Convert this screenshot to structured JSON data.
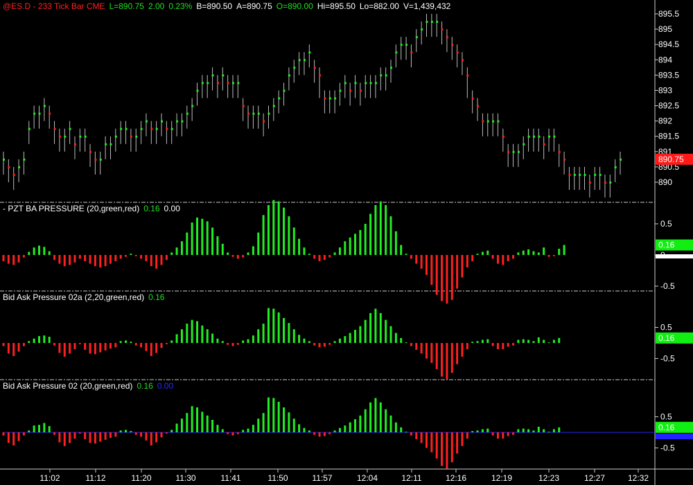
{
  "colors": {
    "up": "#22ee22",
    "down": "#ff2020",
    "accent": "#ff1a1a",
    "grid": "#cfcfcf",
    "text": "#ffffff",
    "blue": "#2222ff",
    "badge_green": "#11ee11"
  },
  "header": {
    "symbol": "@ES.D - 233 Tick Bar  CME",
    "last": "L=890.75",
    "change": "2.00",
    "change_pct": "0.23%",
    "bid": "B=890.50",
    "ask": "A=890.75",
    "open": "O=890.00",
    "high": "Hi=895.50",
    "low": "Lo=882.00",
    "volume": "V=1,439,432"
  },
  "panels": {
    "pressure": {
      "title": "- PZT BA PRESSURE (20,green,red)",
      "value": "0.16",
      "value2": "0.00",
      "badge": "0.16"
    },
    "pressure02a": {
      "title": "Bid Ask Pressure 02a (2,20,green,red)",
      "value": "0.16",
      "badge": "0.16"
    },
    "pressure02": {
      "title": "Bid Ask Pressure 02 (20,green,red)",
      "value": "0.16",
      "value2": "0.00",
      "badge": "0.16"
    }
  },
  "last_price_badge": "890.75",
  "chart_data": [
    {
      "type": "bar",
      "subtype": "ohlc",
      "title": "@ES.D - 233 Tick Bar  CME",
      "y_ticks": [
        "895.5",
        "895",
        "894.5",
        "894",
        "893.5",
        "893",
        "892.5",
        "892",
        "891.5",
        "891",
        "890.5",
        "890"
      ],
      "ylim": [
        889.4,
        895.8
      ],
      "x_ticks": [
        "11:02",
        "11:12",
        "11:20",
        "11:30",
        "11:41",
        "11:50",
        "11:57",
        "12:04",
        "12:11",
        "12:16",
        "12:19",
        "12:23",
        "12:27",
        "12:32"
      ],
      "close": [
        890.75,
        890.5,
        890.25,
        890.5,
        890.75,
        891.75,
        892.25,
        892.25,
        892.5,
        892.25,
        891.75,
        891.5,
        891.5,
        891.75,
        891.25,
        891.5,
        891.5,
        891,
        890.75,
        890.75,
        891.25,
        891.25,
        891.5,
        891.75,
        891.75,
        891.5,
        891.5,
        891.75,
        892,
        891.75,
        891.75,
        892,
        891.75,
        891.75,
        892,
        892,
        892.25,
        892.5,
        893,
        893.25,
        893.25,
        893.5,
        893.25,
        893.5,
        893.25,
        893.25,
        893.25,
        892.5,
        892.25,
        892.25,
        892.25,
        892,
        892.25,
        892.5,
        892.75,
        893,
        893.5,
        893.75,
        894,
        894,
        894.25,
        893.75,
        893.5,
        892.75,
        892.75,
        892.75,
        893,
        893.25,
        893,
        893.25,
        893,
        893.25,
        893.25,
        893.25,
        893.5,
        893.5,
        893.75,
        894.25,
        894.5,
        894.5,
        894.25,
        894.75,
        895,
        895.25,
        895.25,
        895.25,
        895,
        894.75,
        894.5,
        894.25,
        894,
        893.5,
        892.75,
        892.5,
        892,
        892,
        892,
        892,
        891.5,
        891,
        891,
        891,
        891.25,
        891.5,
        891.5,
        891.5,
        891.25,
        891.5,
        891.5,
        891,
        890.75,
        890.25,
        890.25,
        890.25,
        890.25,
        890,
        890.25,
        890.25,
        890,
        890,
        890.5,
        890.75
      ],
      "high": [
        891,
        890.75,
        890.5,
        890.75,
        891,
        892,
        892.5,
        892.5,
        892.75,
        892.5,
        892,
        891.75,
        891.75,
        892,
        891.5,
        891.75,
        891.75,
        891.25,
        891,
        891,
        891.5,
        891.5,
        891.75,
        892,
        892,
        891.75,
        891.75,
        892,
        892.25,
        892,
        892,
        892.25,
        892,
        892,
        892.25,
        892.25,
        892.5,
        892.75,
        893.25,
        893.5,
        893.5,
        893.75,
        893.5,
        893.75,
        893.5,
        893.5,
        893.5,
        892.75,
        892.5,
        892.5,
        892.5,
        892.25,
        892.5,
        892.75,
        893,
        893.25,
        893.75,
        894,
        894.25,
        894.25,
        894.5,
        894,
        893.75,
        893,
        893,
        893,
        893.25,
        893.5,
        893.25,
        893.5,
        893.25,
        893.5,
        893.5,
        893.5,
        893.75,
        893.75,
        894,
        894.5,
        894.75,
        894.75,
        894.5,
        895,
        895.25,
        895.5,
        895.5,
        895.5,
        895.25,
        895,
        894.75,
        894.5,
        894.25,
        893.75,
        893,
        892.75,
        892.25,
        892.25,
        892.25,
        892.25,
        891.75,
        891.25,
        891.25,
        891.25,
        891.5,
        891.75,
        891.75,
        891.75,
        891.5,
        891.75,
        891.75,
        891.25,
        891,
        890.5,
        890.5,
        890.5,
        890.5,
        890.25,
        890.5,
        890.5,
        890.25,
        890.25,
        890.75,
        891
      ],
      "low": [
        890.25,
        890,
        889.75,
        890,
        890.25,
        891.25,
        891.75,
        891.75,
        892,
        891.75,
        891.25,
        891,
        891,
        891.25,
        890.75,
        891,
        891,
        890.5,
        890.25,
        890.25,
        890.75,
        890.75,
        891,
        891.25,
        891.25,
        891,
        891,
        891.25,
        891.5,
        891.25,
        891.25,
        891.5,
        891.25,
        891.25,
        891.5,
        891.5,
        891.75,
        892,
        892.5,
        892.75,
        892.75,
        893,
        892.75,
        893,
        892.75,
        892.75,
        892.75,
        892,
        891.75,
        891.75,
        891.75,
        891.5,
        891.75,
        892,
        892.25,
        892.5,
        893,
        893.25,
        893.5,
        893.5,
        893.75,
        893.25,
        892.75,
        892.25,
        892.25,
        892.25,
        892.5,
        892.75,
        892.5,
        892.75,
        892.5,
        892.75,
        892.75,
        892.75,
        893,
        893,
        893.25,
        893.75,
        894,
        894,
        893.75,
        894.25,
        894.5,
        894.75,
        894.75,
        894.75,
        894.5,
        894.25,
        894,
        893.75,
        893.5,
        892.75,
        892.25,
        892,
        891.5,
        891.5,
        891.5,
        891.5,
        891,
        890.5,
        890.5,
        890.5,
        890.75,
        891,
        891,
        891,
        890.75,
        891,
        891,
        890.5,
        890.25,
        889.75,
        889.75,
        889.75,
        889.75,
        889.5,
        889.75,
        889.75,
        889.5,
        889.5,
        890,
        890.25
      ],
      "last_price": 890.75
    },
    {
      "type": "bar",
      "title": "- PZT BA PRESSURE (20,green,red)",
      "y_ticks": [
        "0.5",
        "0",
        "-0.5"
      ],
      "ylim": [
        -1.0,
        1.0
      ],
      "values": [
        -0.1,
        -0.14,
        -0.16,
        -0.12,
        -0.04,
        0.05,
        0.12,
        0.15,
        0.13,
        0.06,
        -0.08,
        -0.14,
        -0.18,
        -0.16,
        -0.12,
        -0.06,
        -0.1,
        -0.14,
        -0.18,
        -0.2,
        -0.18,
        -0.14,
        -0.1,
        -0.06,
        -0.03,
        0.02,
        -0.02,
        -0.06,
        -0.1,
        -0.18,
        -0.22,
        -0.16,
        -0.08,
        0.04,
        0.12,
        0.22,
        0.36,
        0.52,
        0.6,
        0.58,
        0.54,
        0.44,
        0.3,
        0.18,
        0.04,
        -0.03,
        -0.06,
        -0.04,
        0.04,
        0.14,
        0.36,
        0.64,
        0.8,
        0.88,
        0.86,
        0.76,
        0.62,
        0.44,
        0.26,
        0.12,
        0.02,
        -0.06,
        -0.1,
        -0.08,
        -0.04,
        0.04,
        0.12,
        0.22,
        0.28,
        0.34,
        0.4,
        0.5,
        0.66,
        0.8,
        0.86,
        0.8,
        0.62,
        0.38,
        0.16,
        0.02,
        -0.06,
        -0.14,
        -0.22,
        -0.32,
        -0.48,
        -0.64,
        -0.74,
        -0.78,
        -0.72,
        -0.54,
        -0.36,
        -0.2,
        -0.1,
        0.02,
        0.05,
        0.07,
        -0.06,
        -0.14,
        -0.16,
        -0.1,
        -0.06,
        0.04,
        0.07,
        0.09,
        0.06,
        0.04,
        0.12,
        -0.03,
        -0.02,
        0.1,
        0.16
      ]
    },
    {
      "type": "bar",
      "title": "Bid Ask Pressure 02a (2,20,green,red)",
      "y_ticks": [
        "0.5",
        "-0.5"
      ],
      "ylim": [
        -1.2,
        1.2
      ],
      "values": [
        -0.1,
        -0.34,
        -0.42,
        -0.28,
        -0.1,
        0.06,
        0.14,
        0.22,
        0.24,
        0.2,
        -0.08,
        -0.32,
        -0.44,
        -0.34,
        -0.2,
        -0.04,
        -0.22,
        -0.34,
        -0.36,
        -0.3,
        -0.24,
        -0.18,
        -0.14,
        0.06,
        0.08,
        0.04,
        -0.08,
        -0.14,
        -0.26,
        -0.42,
        -0.32,
        -0.16,
        -0.04,
        0.08,
        0.28,
        0.44,
        0.62,
        0.74,
        0.7,
        0.56,
        0.44,
        0.3,
        0.14,
        0.06,
        -0.06,
        -0.1,
        -0.06,
        0.08,
        0.12,
        0.24,
        0.44,
        0.62,
        1.12,
        1.1,
        0.98,
        0.8,
        0.64,
        0.44,
        0.26,
        0.14,
        0.06,
        -0.08,
        -0.14,
        -0.12,
        -0.06,
        0.06,
        0.14,
        0.22,
        0.32,
        0.42,
        0.54,
        0.74,
        0.96,
        1.1,
        0.96,
        0.74,
        0.54,
        0.32,
        0.16,
        0.02,
        -0.1,
        -0.22,
        -0.34,
        -0.5,
        -0.64,
        -0.84,
        -1.08,
        -1.16,
        -0.96,
        -0.68,
        -0.44,
        -0.2,
        0.04,
        0.06,
        0.1,
        0.12,
        -0.1,
        -0.2,
        -0.2,
        -0.12,
        -0.08,
        0.1,
        0.12,
        0.1,
        0.06,
        0.18,
        0.1,
        0.02,
        0.1,
        0.16
      ]
    },
    {
      "type": "bar",
      "title": "Bid Ask Pressure 02 (20,green,red)",
      "y_ticks": [
        "0.5",
        "-0.5"
      ],
      "ylim": [
        -1.2,
        1.2
      ],
      "values": [
        -0.1,
        -0.34,
        -0.42,
        -0.28,
        -0.1,
        0.06,
        0.22,
        0.24,
        0.3,
        0.2,
        -0.08,
        -0.32,
        -0.44,
        -0.34,
        -0.2,
        -0.04,
        -0.22,
        -0.34,
        -0.36,
        -0.3,
        -0.24,
        -0.18,
        -0.14,
        0.06,
        0.08,
        0.04,
        -0.08,
        -0.14,
        -0.26,
        -0.42,
        -0.32,
        -0.16,
        -0.04,
        0.08,
        0.28,
        0.44,
        0.62,
        0.84,
        0.8,
        0.66,
        0.54,
        0.4,
        0.24,
        0.1,
        -0.06,
        -0.1,
        -0.06,
        0.08,
        0.12,
        0.24,
        0.44,
        0.62,
        1.12,
        1.1,
        0.98,
        0.8,
        0.64,
        0.44,
        0.26,
        0.14,
        0.06,
        -0.08,
        -0.14,
        -0.12,
        -0.06,
        0.06,
        0.14,
        0.22,
        0.32,
        0.42,
        0.54,
        0.74,
        0.96,
        1.1,
        0.96,
        0.74,
        0.54,
        0.32,
        0.16,
        0.02,
        -0.1,
        -0.22,
        -0.34,
        -0.5,
        -0.64,
        -0.84,
        -1.08,
        -1.16,
        -0.96,
        -0.68,
        -0.44,
        -0.2,
        0.04,
        0.06,
        0.1,
        0.12,
        -0.1,
        -0.2,
        -0.2,
        -0.12,
        -0.08,
        0.1,
        0.12,
        0.1,
        0.06,
        0.18,
        0.1,
        0.02,
        0.1,
        0.16
      ],
      "zero_line_color": "#2222ff"
    }
  ]
}
